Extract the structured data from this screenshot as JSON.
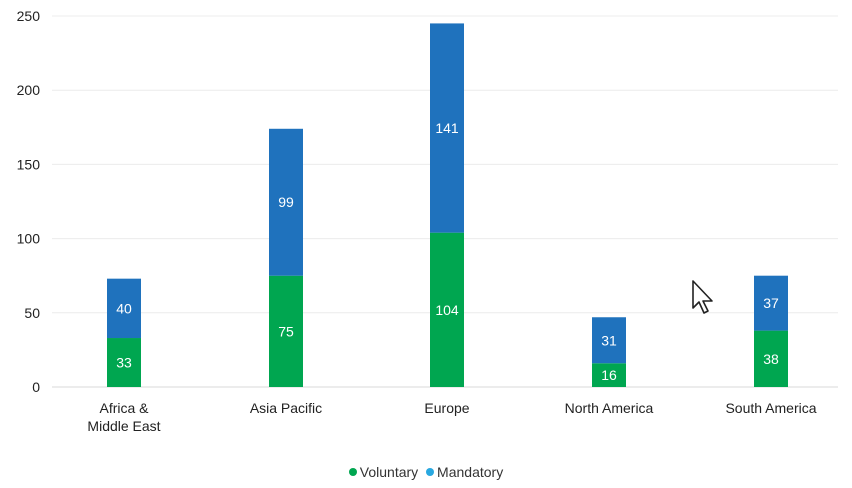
{
  "chart_data": {
    "type": "bar",
    "stacked": true,
    "categories": [
      "Africa &\nMiddle East",
      "Asia Pacific",
      "Europe",
      "North America",
      "South America"
    ],
    "series": [
      {
        "name": "Voluntary",
        "values": [
          33,
          75,
          104,
          16,
          38
        ],
        "color": "#00a650"
      },
      {
        "name": "Mandatory",
        "values": [
          40,
          99,
          141,
          31,
          37
        ],
        "color": "#1f72bd"
      }
    ],
    "legend_dot_colors": [
      "#00a650",
      "#29a8e0"
    ],
    "ylim": [
      0,
      250
    ],
    "yticks": [
      0,
      50,
      100,
      150,
      200,
      250
    ],
    "grid": true,
    "legend_position": "bottom-center",
    "title": "",
    "xlabel": "",
    "ylabel": ""
  },
  "cursor": {
    "icon": "mouse-pointer-icon"
  }
}
